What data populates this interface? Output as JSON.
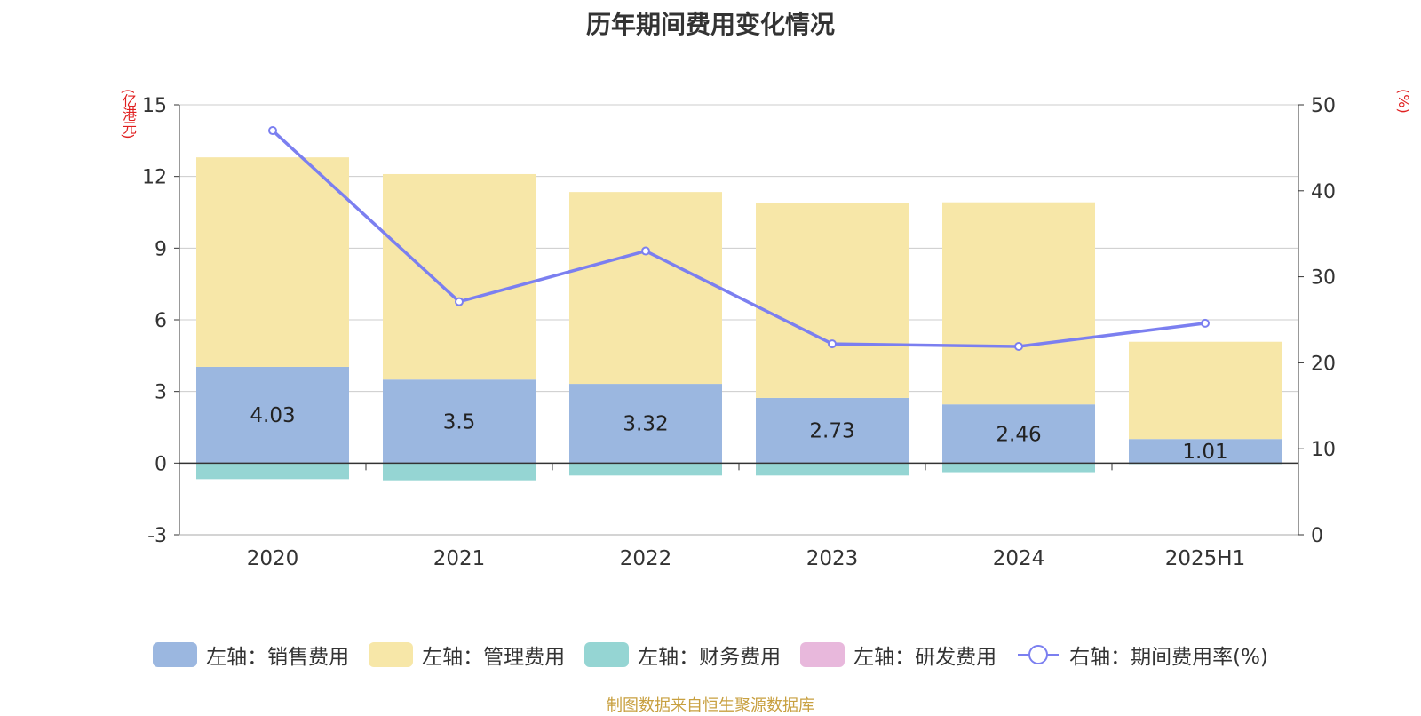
{
  "chart_data": {
    "type": "bar",
    "title": "历年期间费用变化情况",
    "categories": [
      "2020",
      "2021",
      "2022",
      "2023",
      "2024",
      "2025H1"
    ],
    "y_left": {
      "label": "(亿港元)",
      "min": -3,
      "max": 15,
      "ticks": [
        -3,
        0,
        3,
        6,
        9,
        12,
        15
      ]
    },
    "y_right": {
      "label": "(%)",
      "min": 0,
      "max": 50,
      "ticks": [
        0,
        10,
        20,
        30,
        40,
        50
      ]
    },
    "grid": true,
    "legend_position": "bottom",
    "series": [
      {
        "name": "左轴：销售费用",
        "type": "bar",
        "axis": "left",
        "color": "#9bb7e0",
        "stack": "a",
        "values": [
          4.03,
          3.5,
          3.32,
          2.73,
          2.46,
          1.01
        ],
        "labels": [
          "4.03",
          "3.5",
          "3.32",
          "2.73",
          "2.46",
          "1.01"
        ]
      },
      {
        "name": "左轴：管理费用",
        "type": "bar",
        "axis": "left",
        "color": "#f7e7a8",
        "stack": "a",
        "values": [
          8.77,
          8.6,
          8.03,
          8.15,
          8.46,
          4.07
        ]
      },
      {
        "name": "左轴：财务费用",
        "type": "bar",
        "axis": "left",
        "color": "#95d5d3",
        "stack": "a",
        "values": [
          -0.67,
          -0.72,
          -0.52,
          -0.52,
          -0.38,
          -0.04
        ]
      },
      {
        "name": "左轴：研发费用",
        "type": "bar",
        "axis": "left",
        "color": "#e8b8dc",
        "stack": "a",
        "values": [
          0,
          0,
          0,
          0,
          0,
          0
        ]
      },
      {
        "name": "右轴：期间费用率(%)",
        "type": "line",
        "axis": "right",
        "color": "#7b7ff0",
        "values": [
          47.0,
          27.1,
          33.0,
          22.2,
          21.9,
          24.6
        ]
      }
    ]
  },
  "source": "制图数据来自恒生聚源数据库"
}
